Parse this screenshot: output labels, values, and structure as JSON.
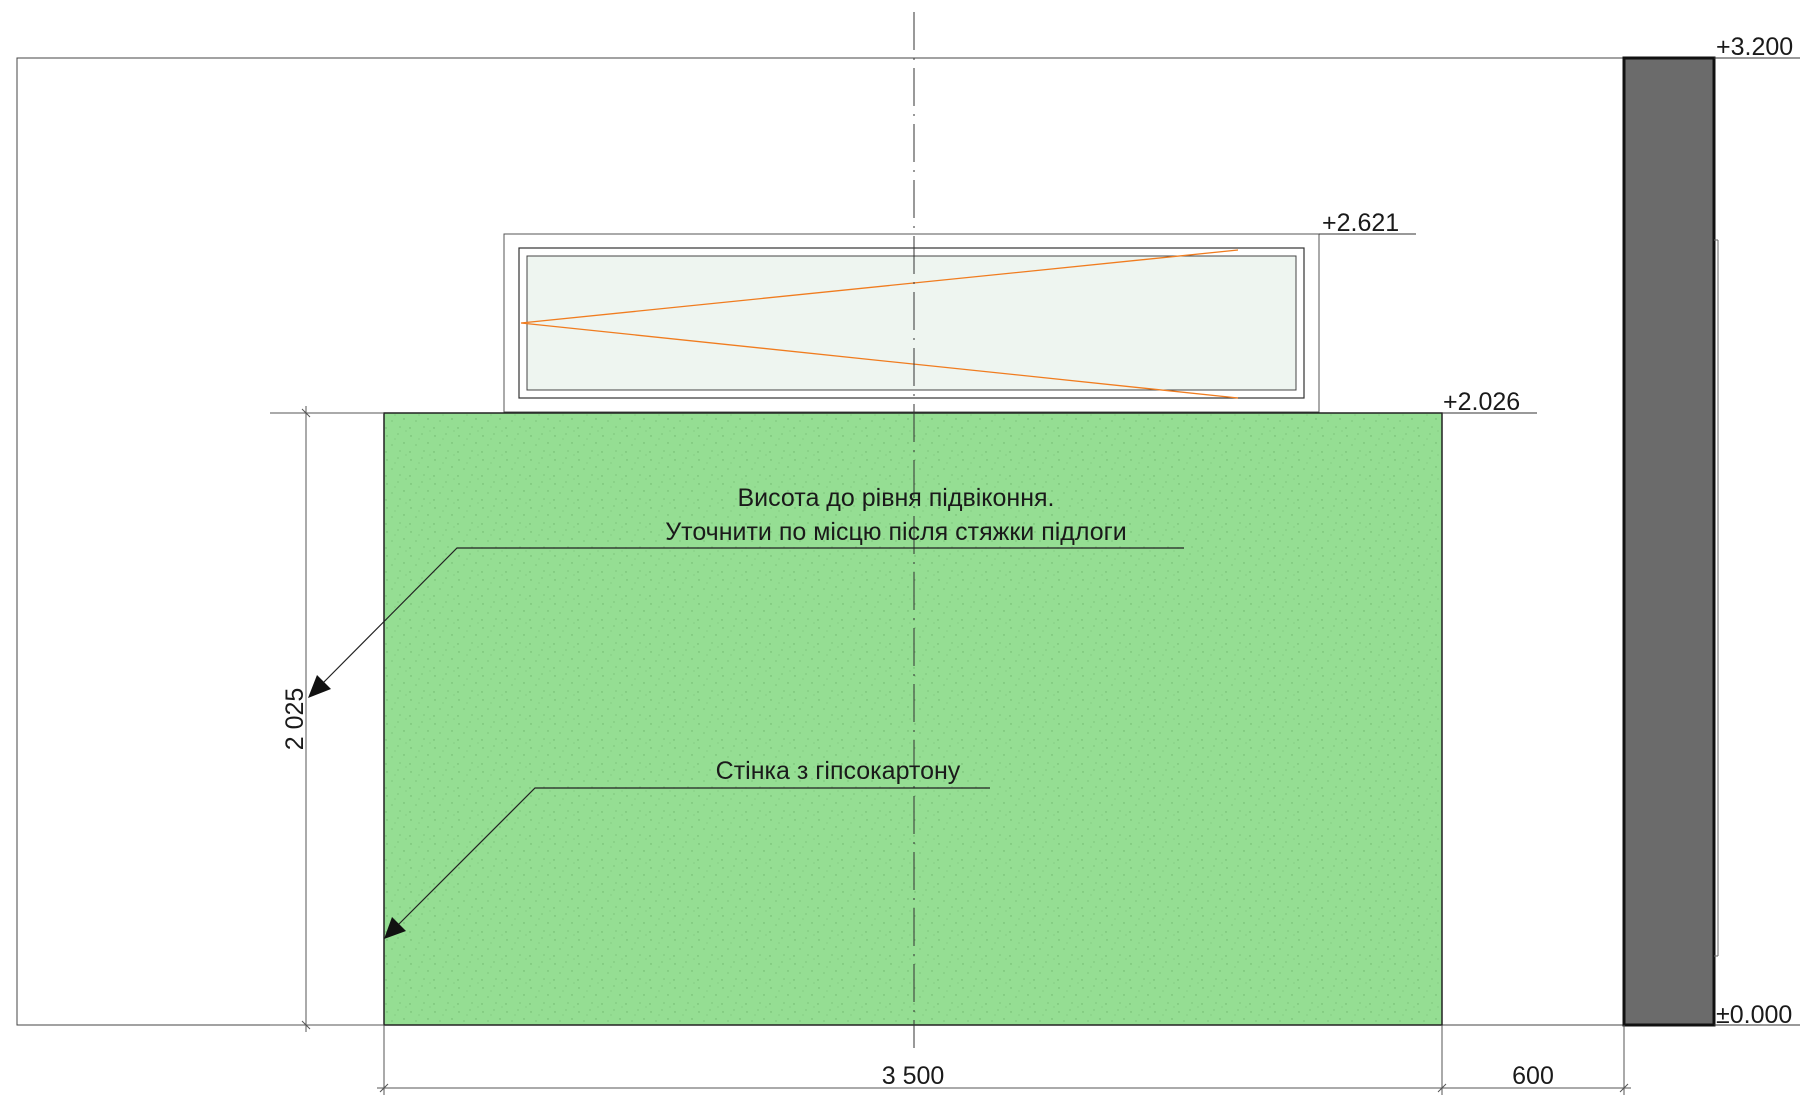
{
  "drawing": {
    "type": "wall elevation",
    "elevations": {
      "top_of_wall": "+3.200",
      "window_top": "+2.621",
      "partition_top": "+2.026",
      "floor": "±0.000"
    },
    "dimensions": {
      "partition_width": "3 500",
      "partition_height": "2 025",
      "side_offset": "600"
    },
    "annotations": {
      "sill_note_line1": "Висота до рівня підвіконня.",
      "sill_note_line2": "Уточнити по місцю після стяжки підлоги",
      "partition_note": "Стінка з гіпсокартону"
    },
    "colors": {
      "partition_fill": "#95de93",
      "glass_fill": "#eef5f0",
      "wall_section": "#6b6b6b",
      "opening_indicator": "#f07c1f",
      "line": "#333333"
    }
  }
}
